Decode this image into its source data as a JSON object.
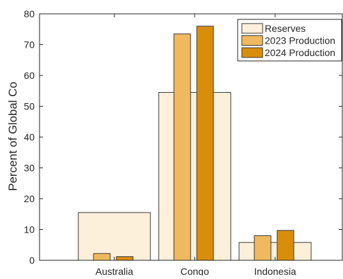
{
  "chart_data": {
    "type": "bar",
    "categories": [
      "Australia",
      "Congo",
      "Indonesia"
    ],
    "series": [
      {
        "name": "Reserves",
        "values": [
          15.5,
          54.5,
          5.8
        ],
        "color": "#fdf0da"
      },
      {
        "name": "2023 Production",
        "values": [
          2.2,
          73.5,
          8.0
        ],
        "color": "#f0b95f"
      },
      {
        "name": "2024 Production",
        "values": [
          1.2,
          76.0,
          9.7
        ],
        "color": "#d98e0b"
      }
    ],
    "title": "",
    "xlabel": "",
    "ylabel": "Percent of Global Co",
    "ylim": [
      0,
      80
    ],
    "yticks": [
      0,
      10,
      20,
      30,
      40,
      50,
      60,
      70,
      80
    ],
    "legend_position": "top-right",
    "grid": false,
    "bar_style": "reserves drawn as wide background bar, productions as narrow overlaid bars"
  }
}
